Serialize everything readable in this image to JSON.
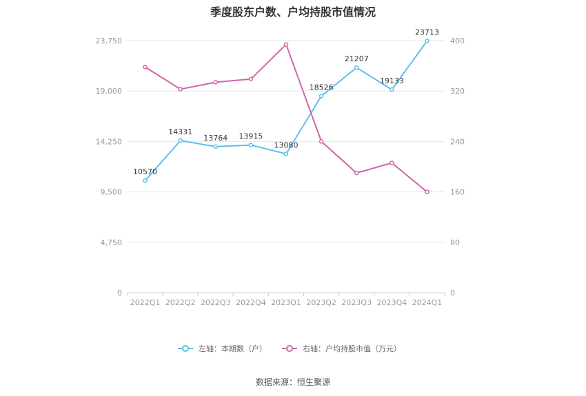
{
  "title": "季度股东户数、户均持股市值情况",
  "source": "数据来源：恒生聚源",
  "chart_data": {
    "type": "line",
    "categories": [
      "2022Q1",
      "2022Q2",
      "2022Q3",
      "2022Q4",
      "2023Q1",
      "2023Q2",
      "2023Q3",
      "2023Q4",
      "2024Q1"
    ],
    "left_axis": {
      "ylim": [
        0,
        23750
      ],
      "ticks": [
        "0",
        "4,750",
        "9,500",
        "14,250",
        "19,000",
        "23,750"
      ]
    },
    "right_axis": {
      "ylim": [
        0,
        400
      ],
      "ticks": [
        "0",
        "80",
        "160",
        "240",
        "320",
        "400"
      ]
    },
    "grid": true,
    "legend_position": "bottom",
    "series": [
      {
        "name": "左轴：本期数（户）",
        "axis": "left",
        "color": "#5bc0eb",
        "values": [
          10570,
          14331,
          13764,
          13915,
          13080,
          18526,
          21207,
          19133,
          23713
        ],
        "labels": [
          "10570",
          "14331",
          "13764",
          "13915",
          "13080",
          "18526",
          "21207",
          "19133",
          "23713"
        ]
      },
      {
        "name": "右轴：户均持股市值（万元）",
        "axis": "right",
        "color": "#d066a8",
        "values": [
          358,
          323,
          334,
          339,
          394,
          240,
          190,
          206,
          160
        ]
      }
    ]
  }
}
